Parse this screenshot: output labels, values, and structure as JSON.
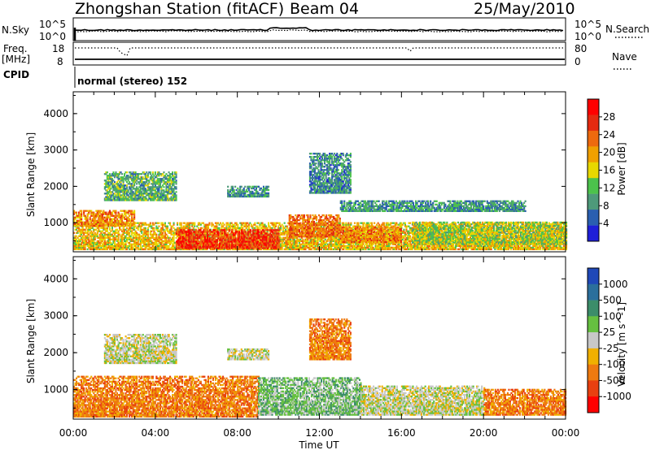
{
  "header": {
    "station": "Zhongshan Station (fitACF)",
    "beam": "Beam 04",
    "date": "25/May/2010"
  },
  "status_panels": {
    "nsky_label": "N.Sky",
    "nsearch_label": "N.Search",
    "nsky_ticks": [
      "10^5",
      "10^0"
    ],
    "nsearch_ticks": [
      "10^5",
      "10^0"
    ],
    "freq_label": "Freq.",
    "freq_unit": "[MHz]",
    "freq_ticks": [
      "18",
      "8"
    ],
    "nave_label": "Nave",
    "nave_ticks": [
      "80",
      "0"
    ],
    "cpid_label": "CPID",
    "cpid_text": "normal (stereo) 152"
  },
  "colors": {
    "power": [
      "#1f1fd8",
      "#2a5fb0",
      "#4e9a7a",
      "#4cc24c",
      "#e8d800",
      "#f0a000",
      "#ee6a0e",
      "#e52a10",
      "#ff0000"
    ],
    "velocity": [
      "#1f48b8",
      "#2b6f9c",
      "#3c8d6a",
      "#66c040",
      "#c8c8c8",
      "#f0b000",
      "#ee7a10",
      "#e84010",
      "#ff0000"
    ]
  },
  "chart_data": [
    {
      "type": "heatmap",
      "title": "Power",
      "xlabel": "Time UT",
      "ylabel": "Slant Range [km]",
      "x_ticks": [
        "00:00",
        "04:00",
        "08:00",
        "12:00",
        "16:00",
        "20:00",
        "00:00"
      ],
      "y_ticks": [
        "1000",
        "2000",
        "3000",
        "4000"
      ],
      "ylim": [
        200,
        4600
      ],
      "colorbar": {
        "label": "Power [dB]",
        "ticks": [
          "4",
          "8",
          "12",
          "16",
          "20",
          "24",
          "28"
        ],
        "range": [
          0,
          32
        ]
      },
      "regions": [
        {
          "t": [
            0.0,
            24.0
          ],
          "r": [
            250,
            1000
          ],
          "level": 18
        },
        {
          "t": [
            0.0,
            3.0
          ],
          "r": [
            900,
            1350
          ],
          "level": 22
        },
        {
          "t": [
            5.0,
            10.0
          ],
          "r": [
            280,
            800
          ],
          "level": 28
        },
        {
          "t": [
            10.5,
            13.0
          ],
          "r": [
            600,
            1200
          ],
          "level": 24
        },
        {
          "t": [
            13.0,
            16.0
          ],
          "r": [
            450,
            900
          ],
          "level": 22
        },
        {
          "t": [
            16.5,
            24.0
          ],
          "r": [
            400,
            1000
          ],
          "level": 14
        },
        {
          "t": [
            1.5,
            5.0
          ],
          "r": [
            1600,
            2400
          ],
          "level": 10
        },
        {
          "t": [
            7.5,
            9.5
          ],
          "r": [
            1700,
            2000
          ],
          "level": 8
        },
        {
          "t": [
            11.5,
            13.5
          ],
          "r": [
            1800,
            2900
          ],
          "level": 7
        },
        {
          "t": [
            13.0,
            22.0
          ],
          "r": [
            1300,
            1600
          ],
          "level": 8
        }
      ]
    },
    {
      "type": "heatmap",
      "title": "Velocity",
      "xlabel": "Time UT",
      "ylabel": "Slant Range [km]",
      "x_ticks": [
        "00:00",
        "04:00",
        "08:00",
        "12:00",
        "16:00",
        "20:00",
        "00:00"
      ],
      "y_ticks": [
        "1000",
        "2000",
        "3000",
        "4000"
      ],
      "ylim": [
        200,
        4600
      ],
      "colorbar": {
        "label": "Velocity [m s^-1]",
        "ticks": [
          "1000",
          "500",
          "100",
          "25",
          "-25",
          "-100",
          "-500",
          "-1000"
        ]
      },
      "regions": [
        {
          "t": [
            0.0,
            9.0
          ],
          "r": [
            250,
            1350
          ],
          "class": "-100"
        },
        {
          "t": [
            9.0,
            14.0
          ],
          "r": [
            300,
            1300
          ],
          "class": "100"
        },
        {
          "t": [
            14.0,
            20.0
          ],
          "r": [
            300,
            1100
          ],
          "class": "25"
        },
        {
          "t": [
            20.0,
            24.0
          ],
          "r": [
            300,
            1000
          ],
          "class": "-100"
        },
        {
          "t": [
            1.5,
            5.0
          ],
          "r": [
            1700,
            2500
          ],
          "class": "25"
        },
        {
          "t": [
            7.5,
            9.5
          ],
          "r": [
            1800,
            2100
          ],
          "class": "25"
        },
        {
          "t": [
            11.5,
            13.5
          ],
          "r": [
            1800,
            2900
          ],
          "class": "-100"
        }
      ]
    }
  ]
}
